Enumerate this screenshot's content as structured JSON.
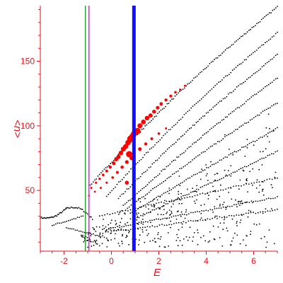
{
  "chart_data": {
    "type": "scatter",
    "xlabel": "E",
    "ylabel": "<n>",
    "xlim": [
      -3,
      7
    ],
    "ylim": [
      3,
      193
    ],
    "x_ticks": [
      -2,
      0,
      2,
      4,
      6
    ],
    "y_ticks": [
      50,
      100,
      150
    ],
    "grid": false,
    "legend": "none",
    "colors": {
      "axis": "#e8101e",
      "points": "#000000",
      "highlight": "#ff0000",
      "line_green": "#2e9e3a",
      "line_magenta": "#e020e0",
      "line_blue": "#1010ff"
    },
    "vertical_lines": [
      {
        "x": -1.1,
        "color": "#2e9e3a",
        "width": 1.5
      },
      {
        "x": -0.95,
        "color": "#e020e0",
        "width": 1.5
      },
      {
        "x": 0.95,
        "color": "#1010ff",
        "width": 5
      }
    ],
    "bands": [
      {
        "x0": -3.0,
        "y0": 29,
        "x1": -1.9,
        "y1": 36,
        "n": 28,
        "curve": -0.3
      },
      {
        "x0": -1.9,
        "y0": 36,
        "x1": -0.8,
        "y1": 28,
        "n": 22,
        "curve": 0.4
      },
      {
        "x0": -2.5,
        "y0": 23,
        "x1": -1.2,
        "y1": 30,
        "n": 18,
        "curve": 0
      },
      {
        "x0": -1.9,
        "y0": 21,
        "x1": -0.3,
        "y1": 14,
        "n": 22,
        "curve": 0
      },
      {
        "x0": -0.9,
        "y0": 54,
        "x1": 7.0,
        "y1": 192,
        "n": 120,
        "curve": 0.6
      },
      {
        "x0": -0.2,
        "y0": 46,
        "x1": 7.0,
        "y1": 172,
        "n": 100,
        "curve": 0.5
      },
      {
        "x0": 0.3,
        "y0": 44,
        "x1": 7.0,
        "y1": 155,
        "n": 95,
        "curve": 0.4
      },
      {
        "x0": 0.5,
        "y0": 38,
        "x1": 7.0,
        "y1": 137,
        "n": 90,
        "curve": 0.3
      },
      {
        "x0": 0.6,
        "y0": 35,
        "x1": 7.0,
        "y1": 118,
        "n": 85,
        "curve": 0.2
      },
      {
        "x0": 0.8,
        "y0": 32,
        "x1": 7.0,
        "y1": 98,
        "n": 80,
        "curve": 0.1
      },
      {
        "x0": 1.0,
        "y0": 28,
        "x1": 7.0,
        "y1": 80,
        "n": 75,
        "curve": 0
      },
      {
        "x0": -0.5,
        "y0": 30,
        "x1": 7.0,
        "y1": 60,
        "n": 70,
        "curve": 0
      },
      {
        "x0": -0.2,
        "y0": 20,
        "x1": 7.0,
        "y1": 45,
        "n": 80,
        "curve": 0
      },
      {
        "x0": 0.0,
        "y0": 18,
        "x1": 7.0,
        "y1": 35,
        "n": 70,
        "curve": 0
      }
    ],
    "cloud": {
      "xmin": -1.3,
      "xmax": 7.0,
      "ybase": 10,
      "yslope": 8.5,
      "n": 380,
      "seed": 7
    },
    "highlight_points": [
      {
        "x": -0.85,
        "y": 52,
        "s": 1.5
      },
      {
        "x": -0.65,
        "y": 56,
        "s": 1.6
      },
      {
        "x": -0.5,
        "y": 59,
        "s": 1.7
      },
      {
        "x": -0.35,
        "y": 62,
        "s": 1.8
      },
      {
        "x": -0.2,
        "y": 65,
        "s": 2
      },
      {
        "x": -0.05,
        "y": 68,
        "s": 2.2
      },
      {
        "x": 0.1,
        "y": 71,
        "s": 2.5
      },
      {
        "x": 0.2,
        "y": 74,
        "s": 2.8
      },
      {
        "x": 0.3,
        "y": 76,
        "s": 3
      },
      {
        "x": 0.4,
        "y": 79,
        "s": 3.2
      },
      {
        "x": 0.5,
        "y": 82,
        "s": 3.5
      },
      {
        "x": 0.6,
        "y": 84,
        "s": 3.5
      },
      {
        "x": 0.7,
        "y": 87,
        "s": 3.8
      },
      {
        "x": 0.8,
        "y": 90,
        "s": 4.5
      },
      {
        "x": 0.88,
        "y": 92,
        "s": 4
      },
      {
        "x": 1.0,
        "y": 96,
        "s": 3.5
      },
      {
        "x": 1.2,
        "y": 100,
        "s": 3.5
      },
      {
        "x": 1.35,
        "y": 103,
        "s": 3.4
      },
      {
        "x": 1.5,
        "y": 106,
        "s": 3.2
      },
      {
        "x": 1.65,
        "y": 108,
        "s": 3
      },
      {
        "x": 1.8,
        "y": 111,
        "s": 2.8
      },
      {
        "x": 1.95,
        "y": 114,
        "s": 2.5
      },
      {
        "x": 2.1,
        "y": 117,
        "s": 2.4
      },
      {
        "x": 2.3,
        "y": 120,
        "s": 2.2
      },
      {
        "x": 2.5,
        "y": 123,
        "s": 2
      },
      {
        "x": 2.7,
        "y": 126,
        "s": 1.8
      },
      {
        "x": 2.9,
        "y": 128,
        "s": 1.6
      },
      {
        "x": 3.1,
        "y": 131,
        "s": 1.5
      },
      {
        "x": -0.95,
        "y": 46,
        "s": 1.3
      },
      {
        "x": -0.7,
        "y": 49,
        "s": 1.4
      },
      {
        "x": -0.45,
        "y": 52,
        "s": 1.5
      },
      {
        "x": -0.2,
        "y": 56,
        "s": 1.6
      },
      {
        "x": 0.05,
        "y": 60,
        "s": 1.8
      },
      {
        "x": 0.25,
        "y": 64,
        "s": 2
      },
      {
        "x": 0.45,
        "y": 68,
        "s": 2.3
      },
      {
        "x": 0.65,
        "y": 72,
        "s": 2.6
      },
      {
        "x": 0.85,
        "y": 75,
        "s": 3
      },
      {
        "x": 0.75,
        "y": 78,
        "s": 4.5
      },
      {
        "x": 1.2,
        "y": 82,
        "s": 2.5
      },
      {
        "x": 1.45,
        "y": 86,
        "s": 2.2
      },
      {
        "x": 1.7,
        "y": 90,
        "s": 2
      },
      {
        "x": 2.0,
        "y": 94,
        "s": 1.8
      },
      {
        "x": 2.3,
        "y": 98,
        "s": 1.5
      },
      {
        "x": 0.65,
        "y": 56,
        "s": 2.8
      },
      {
        "x": 1.1,
        "y": 96,
        "s": 4.5
      },
      {
        "x": 0.95,
        "y": 94,
        "s": 4
      }
    ]
  }
}
